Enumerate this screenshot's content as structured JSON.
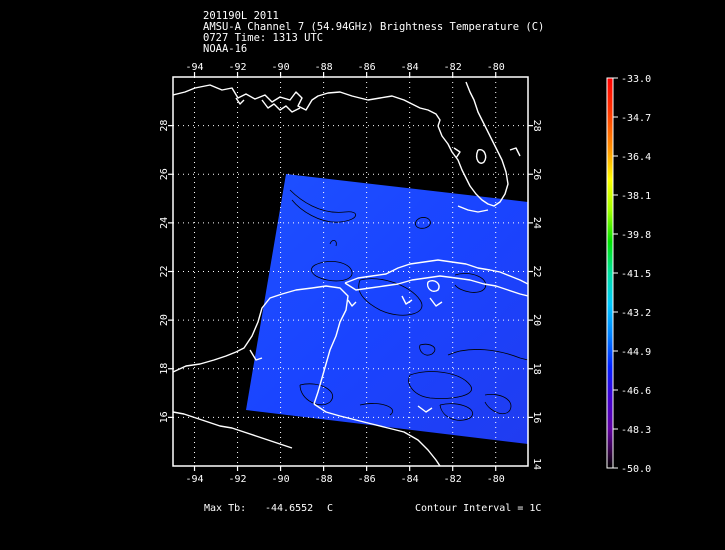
{
  "header": {
    "line1": "201190L 2011",
    "line2": "AMSU-A Channel 7 (54.94GHz) Brightness Temperature (C)",
    "line3": "0727 Time: 1313 UTC",
    "line4": "NOAA-16"
  },
  "map": {
    "lon_range": [
      -95,
      -78.5
    ],
    "lat_range": [
      14,
      30
    ],
    "lon_ticks": [
      "-94",
      "-92",
      "-90",
      "-88",
      "-86",
      "-84",
      "-82",
      "-80"
    ],
    "lat_ticks": [
      "16",
      "18",
      "20",
      "22",
      "24",
      "26",
      "28"
    ],
    "bottom_right_tick": "14",
    "swath_color": "#1e46ff"
  },
  "colorbar": {
    "labels": [
      "-33.0",
      "-34.7",
      "-36.4",
      "-38.1",
      "-39.8",
      "-41.5",
      "-43.2",
      "-44.9",
      "-46.6",
      "-48.3",
      "-50.0"
    ]
  },
  "footer": {
    "max_tb_label": "Max Tb:",
    "max_tb_value": "-44.6552",
    "max_tb_unit": "C",
    "contour": "Contour Interval = 1C"
  }
}
